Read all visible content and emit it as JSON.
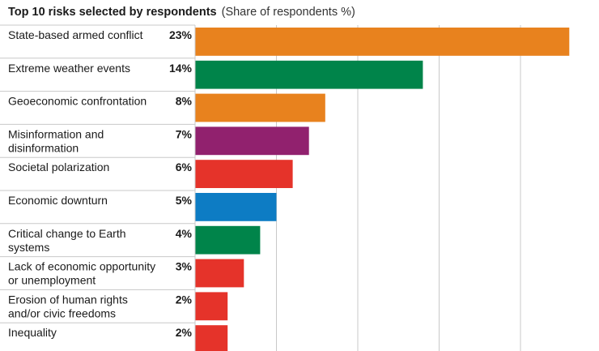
{
  "header": {
    "title": "Top 10 risks selected by respondents",
    "subtitle": "(Share of respondents %)"
  },
  "chart_data": {
    "type": "bar",
    "orientation": "horizontal",
    "title": "Top 10 risks selected by respondents",
    "subtitle": "(Share of respondents %)",
    "xlabel": "",
    "ylabel": "",
    "xlim": [
      0,
      25
    ],
    "grid": true,
    "unit": "%",
    "categories": [
      [
        "State-based armed conflict"
      ],
      [
        "Extreme weather events"
      ],
      [
        "Geoeconomic confrontation"
      ],
      [
        "Misinformation and",
        "disinformation"
      ],
      [
        "Societal polarization"
      ],
      [
        "Economic downturn"
      ],
      [
        "Critical change to Earth",
        "systems"
      ],
      [
        "Lack of economic opportunity",
        "or unemployment"
      ],
      [
        "Erosion of human rights",
        "and/or civic freedoms"
      ],
      [
        "Inequality"
      ]
    ],
    "values": [
      23,
      14,
      8,
      7,
      6,
      5,
      4,
      3,
      2,
      2
    ],
    "value_labels": [
      "23%",
      "14%",
      "8%",
      "7%",
      "6%",
      "5%",
      "4%",
      "3%",
      "2%",
      "2%"
    ],
    "colors": [
      "#E8821E",
      "#00844A",
      "#E8821E",
      "#91216E",
      "#E5332A",
      "#0D7CC4",
      "#00844A",
      "#E5332A",
      "#E5332A",
      "#E5332A"
    ],
    "gridline_color": "#c8c8c8",
    "separator_color": "#c8c8c8"
  }
}
